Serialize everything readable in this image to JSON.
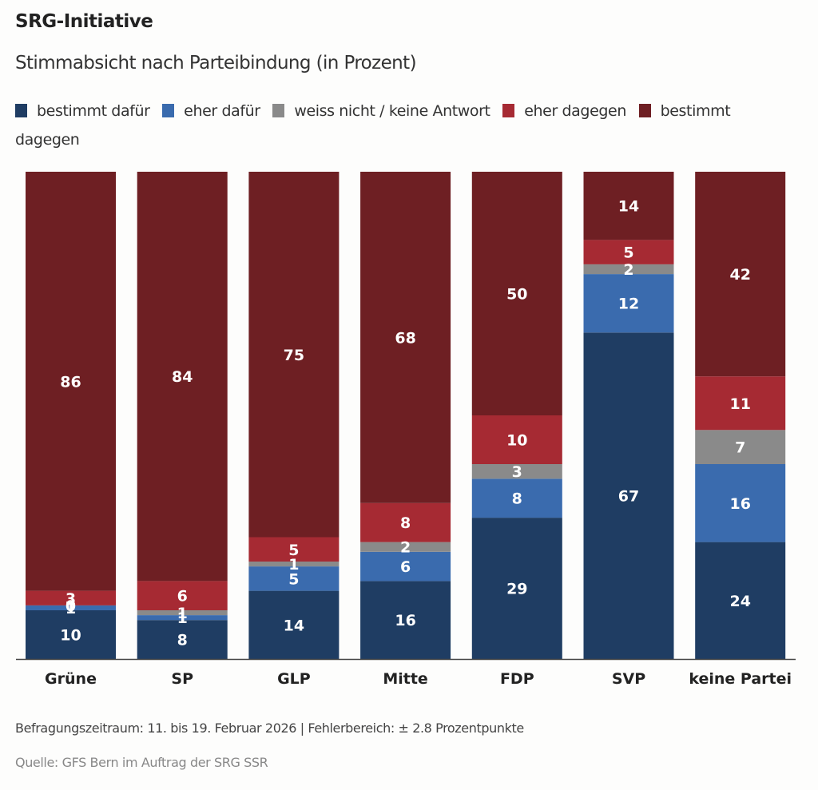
{
  "header": {
    "title": "SRG-Initiative",
    "subtitle": "Stimmabsicht nach Parteibindung (in Prozent)"
  },
  "legend": [
    {
      "label": "bestimmt dafür",
      "color": "#1f3d63"
    },
    {
      "label": "eher dafür",
      "color": "#3a6bae"
    },
    {
      "label": "weiss nicht / keine Antwort",
      "color": "#8a8a8a"
    },
    {
      "label": "eher dagegen",
      "color": "#a62a33"
    },
    {
      "label": "bestimmt dagegen",
      "color": "#6e1f23"
    }
  ],
  "footer": {
    "note": "Befragungszeitraum: 11. bis 19. Februar 2026 | Fehlerbereich: ± 2.8 Prozentpunkte",
    "source": "Quelle: GFS Bern im Auftrag der SRG SSR"
  },
  "chart_data": {
    "type": "bar",
    "stacked": true,
    "title": "SRG-Initiative",
    "subtitle": "Stimmabsicht nach Parteibindung (in Prozent)",
    "xlabel": "",
    "ylabel": "",
    "ylim": [
      0,
      100
    ],
    "grid": false,
    "legend_position": "top",
    "categories": [
      "Grüne",
      "SP",
      "GLP",
      "Mitte",
      "FDP",
      "SVP",
      "keine Partei"
    ],
    "series": [
      {
        "name": "bestimmt dafür",
        "color": "#1f3d63",
        "values": [
          10,
          8,
          14,
          16,
          29,
          67,
          24
        ]
      },
      {
        "name": "eher dafür",
        "color": "#3a6bae",
        "values": [
          1,
          1,
          5,
          6,
          8,
          12,
          16
        ]
      },
      {
        "name": "weiss nicht / keine Antwort",
        "color": "#8a8a8a",
        "values": [
          0,
          1,
          1,
          2,
          3,
          2,
          7
        ]
      },
      {
        "name": "eher dagegen",
        "color": "#a62a33",
        "values": [
          3,
          6,
          5,
          8,
          10,
          5,
          11
        ]
      },
      {
        "name": "bestimmt dagegen",
        "color": "#6e1f23",
        "values": [
          86,
          84,
          75,
          68,
          50,
          14,
          42
        ]
      }
    ]
  }
}
